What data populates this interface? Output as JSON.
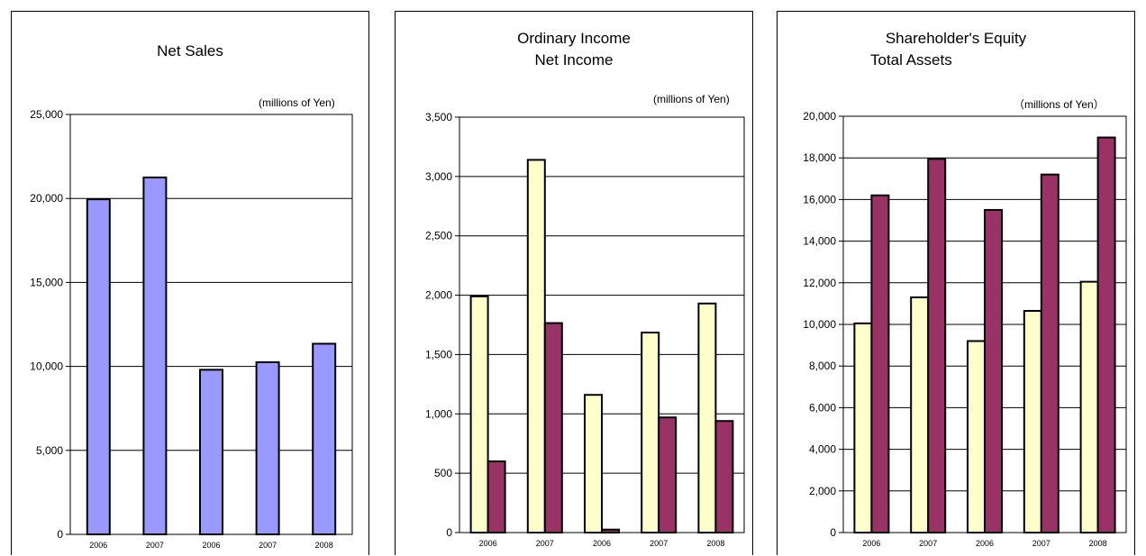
{
  "chart_data": [
    {
      "type": "bar",
      "title": "Net Sales",
      "unit_label": "(millions of Yen)",
      "categories": [
        "2006",
        "2007",
        "2006",
        "2007",
        "2008"
      ],
      "ylim": [
        0,
        25000
      ],
      "yticks": [
        "0",
        "5,000",
        "10,000",
        "15,000",
        "20,000",
        "25,000"
      ],
      "grid": true,
      "series": [
        {
          "values": [
            19950,
            21250,
            9800,
            10250,
            11350
          ],
          "color": "#9999ff"
        }
      ]
    },
    {
      "type": "bar",
      "title_lines": [
        "Ordinary Income",
        "Net Income"
      ],
      "unit_label": "(millions of Yen)",
      "categories": [
        "2006",
        "2007",
        "2006",
        "2007",
        "2008"
      ],
      "ylim": [
        0,
        3500
      ],
      "yticks": [
        "0",
        "500",
        "1,000",
        "1,500",
        "2,000",
        "2,500",
        "3,000",
        "3,500"
      ],
      "grid": true,
      "series": [
        {
          "values": [
            1990,
            3140,
            1160,
            1685,
            1930
          ],
          "color": "#ffffcc"
        },
        {
          "values": [
            600,
            1765,
            25,
            970,
            940
          ],
          "color": "#993366"
        }
      ]
    },
    {
      "type": "bar",
      "title_lines": [
        "Shareholder's Equity",
        "Total Assets"
      ],
      "unit_label": "（millions of Yen）",
      "categories": [
        "2006",
        "2007",
        "2006",
        "2007",
        "2008"
      ],
      "ylim": [
        0,
        20000
      ],
      "yticks": [
        "0",
        "2,000",
        "4,000",
        "6,000",
        "8,000",
        "10,000",
        "12,000",
        "14,000",
        "16,000",
        "18,000",
        "20,000"
      ],
      "grid": true,
      "series": [
        {
          "values": [
            10050,
            11300,
            9200,
            10650,
            12050
          ],
          "color": "#ffffcc"
        },
        {
          "values": [
            16200,
            17950,
            15500,
            17200,
            18980
          ],
          "color": "#993366"
        }
      ]
    }
  ]
}
